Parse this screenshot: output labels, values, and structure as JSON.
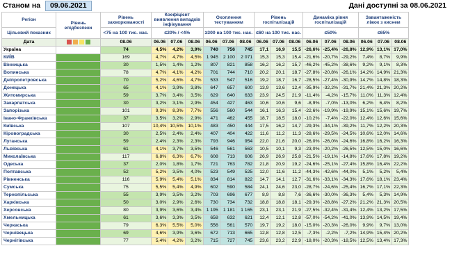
{
  "header": {
    "as_of_label": "Станом на",
    "as_of_date": "09.06.2021",
    "data_note": "Дані доступні за 08.06.2021"
  },
  "columns": {
    "region": "Регіон",
    "indicator": "Цільовий показник",
    "date_row": "Дата",
    "epi_level": "Рівень епідбезпеки",
    "morbidity": "Рівень захворюваності",
    "morbidity_target": "<75 на 100 тис. нас.",
    "detection": "Коефіцієнт виявлення випадків інфікування",
    "detection_target": "≤20% / <4%",
    "testing": "Охоплення тестуванням",
    "testing_target": "≥300 на 100 тис. нас.",
    "hosp": "Рівень госпіталізацій",
    "hosp_target": "≤60 на 100 тис. нас.",
    "dyn": "Динаміка рівня госпіталізацій",
    "dyn_target": "≤50%",
    "beds": "Завантаженість ліжок з киснем",
    "beds_target": "≤65%"
  },
  "dates": {
    "morbidity": "08.06",
    "triple": [
      "06.06",
      "07.06",
      "08.06"
    ]
  },
  "chart_data": {
    "type": "table",
    "rows": [
      {
        "region": "Україна",
        "morb": "74",
        "det": [
          "4,5%",
          "4,2%",
          "3,9%"
        ],
        "test": [
          "740",
          "756",
          "745"
        ],
        "hosp": [
          "17,1",
          "16,9",
          "15,5"
        ],
        "dyn": [
          "-26,6%",
          "-25,4%",
          "-26,8%"
        ],
        "beds": [
          "12,9%",
          "13,1%",
          "17,0%"
        ]
      },
      {
        "region": "КИЇВ",
        "morb": "169",
        "det": [
          "4,7%",
          "4,7%",
          "4,5%"
        ],
        "test": [
          "1 945",
          "2 100",
          "2 071"
        ],
        "hosp": [
          "15,3",
          "15,3",
          "15,4"
        ],
        "dyn": [
          "-21,6%",
          "-20,7%",
          "-29,2%"
        ],
        "beds": [
          "7,4%",
          "8,7%",
          "9,9%"
        ]
      },
      {
        "region": "Вінницька",
        "morb": "30",
        "det": [
          "1,5%",
          "1,4%",
          "1,2%"
        ],
        "test": [
          "807",
          "821",
          "858"
        ],
        "hosp": [
          "16,2",
          "16,2",
          "15,7"
        ],
        "dyn": [
          "-46,2%",
          "-45,2%",
          "-38,6%"
        ],
        "beds": [
          "9,2%",
          "9,1%",
          "8,3%"
        ]
      },
      {
        "region": "Волинська",
        "morb": "78",
        "det": [
          "4,7%",
          "4,1%",
          "4,2%"
        ],
        "test": [
          "701",
          "744",
          "710"
        ],
        "hosp": [
          "20,2",
          "20,1",
          "18,7"
        ],
        "dyn": [
          "-27,8%",
          "-20,8%",
          "-26,1%"
        ],
        "beds": [
          "14,2%",
          "14,9%",
          "21,3%"
        ]
      },
      {
        "region": "Дніпропетровська",
        "morb": "70",
        "det": [
          "5,2%",
          "4,6%",
          "4,7%"
        ],
        "test": [
          "533",
          "547",
          "516"
        ],
        "hosp": [
          "19,2",
          "18,7",
          "16,7"
        ],
        "dyn": [
          "-28,5%",
          "-27,4%",
          "-30,9%"
        ],
        "beds": [
          "14,7%",
          "14,8%",
          "18,3%"
        ]
      },
      {
        "region": "Донецька",
        "morb": "65",
        "det": [
          "4,1%",
          "3,9%",
          "3,8%"
        ],
        "test": [
          "647",
          "657",
          "600"
        ],
        "hosp": [
          "13,9",
          "13,6",
          "12,4"
        ],
        "dyn": [
          "-35,9%",
          "-32,2%",
          "-31,7%"
        ],
        "beds": [
          "21,4%",
          "21,3%",
          "20,2%"
        ]
      },
      {
        "region": "Житомирська",
        "morb": "59",
        "det": [
          "3,7%",
          "3,4%",
          "3,5%"
        ],
        "test": [
          "629",
          "640",
          "633"
        ],
        "hosp": [
          "23,9",
          "24,5",
          "21,9"
        ],
        "dyn": [
          "-11,4%",
          "-4,2%",
          "-15,7%"
        ],
        "beds": [
          "11,0%",
          "11,3%",
          "12,4%"
        ]
      },
      {
        "region": "Закарпатська",
        "morb": "30",
        "det": [
          "3,2%",
          "3,1%",
          "2,9%"
        ],
        "test": [
          "454",
          "427",
          "463"
        ],
        "hosp": [
          "10,6",
          "10,6",
          "9,6"
        ],
        "dyn": [
          "-8,9%",
          "-7,0%",
          "-13,0%"
        ],
        "beds": [
          "6,2%",
          "6,4%",
          "8,2%"
        ]
      },
      {
        "region": "Запорізька",
        "morb": "101",
        "det": [
          "9,3%",
          "8,3%",
          "7,7%"
        ],
        "test": [
          "556",
          "560",
          "544"
        ],
        "hosp": [
          "16,1",
          "16,3",
          "15,4"
        ],
        "dyn": [
          "-22,6%",
          "-19,9%",
          "-19,9%"
        ],
        "beds": [
          "15,1%",
          "15,6%",
          "19,7%"
        ]
      },
      {
        "region": "Івано-Франківська",
        "morb": "37",
        "det": [
          "3,5%",
          "3,2%",
          "2,9%"
        ],
        "test": [
          "471",
          "462",
          "455"
        ],
        "hosp": [
          "18,7",
          "18,5",
          "18,0"
        ],
        "dyn": [
          "-10,2%",
          "-7,4%",
          "-22,0%"
        ],
        "beds": [
          "12,4%",
          "12,6%",
          "15,6%"
        ]
      },
      {
        "region": "Київська",
        "morb": "107",
        "det": [
          "10,4%",
          "10,5%",
          "10,1%"
        ],
        "test": [
          "483",
          "450",
          "444"
        ],
        "hosp": [
          "17,5",
          "16,2",
          "14,7"
        ],
        "dyn": [
          "-29,3%",
          "-34,1%",
          "-39,2%"
        ],
        "beds": [
          "11,7%",
          "12,2%",
          "20,3%"
        ]
      },
      {
        "region": "Кіровоградська",
        "morb": "30",
        "det": [
          "2,5%",
          "2,4%",
          "2,4%"
        ],
        "test": [
          "407",
          "404",
          "422"
        ],
        "hosp": [
          "11,6",
          "11,2",
          "11,3"
        ],
        "dyn": [
          "-28,6%",
          "-29,5%",
          "-24,5%"
        ],
        "beds": [
          "10,6%",
          "12,0%",
          "14,6%"
        ]
      },
      {
        "region": "Луганська",
        "morb": "59",
        "det": [
          "2,4%",
          "2,3%",
          "2,3%"
        ],
        "test": [
          "793",
          "946",
          "954"
        ],
        "hosp": [
          "22,0",
          "21,6",
          "20,0"
        ],
        "dyn": [
          "-26,0%",
          "-26,0%",
          "-24,6%"
        ],
        "beds": [
          "16,8%",
          "16,2%",
          "16,3%"
        ]
      },
      {
        "region": "Львівська",
        "morb": "61",
        "det": [
          "4,1%",
          "3,7%",
          "3,5%"
        ],
        "test": [
          "546",
          "561",
          "563"
        ],
        "hosp": [
          "10,5",
          "10,1",
          "9,3"
        ],
        "dyn": [
          "-23,0%",
          "-20,2%",
          "-26,5%"
        ],
        "beds": [
          "12,5%",
          "15,0%",
          "16,6%"
        ]
      },
      {
        "region": "Миколаївська",
        "morb": "117",
        "det": [
          "6,8%",
          "6,3%",
          "6,7%"
        ],
        "test": [
          "608",
          "713",
          "606"
        ],
        "hosp": [
          "26,9",
          "26,9",
          "25,8"
        ],
        "dyn": [
          "-21,5%",
          "-19,1%",
          "-14,8%"
        ],
        "beds": [
          "17,6%",
          "17,8%",
          "19,2%"
        ]
      },
      {
        "region": "Одеська",
        "morb": "37",
        "det": [
          "2,0%",
          "1,8%",
          "1,7%"
        ],
        "test": [
          "721",
          "763",
          "782"
        ],
        "hosp": [
          "21,8",
          "20,9",
          "19,2"
        ],
        "dyn": [
          "-24,6%",
          "-25,1%",
          "-27,4%"
        ],
        "beds": [
          "15,8%",
          "16,4%",
          "22,2%"
        ]
      },
      {
        "region": "Полтавська",
        "morb": "52",
        "det": [
          "5,2%",
          "3,5%",
          "4,0%"
        ],
        "test": [
          "523",
          "549",
          "525"
        ],
        "hosp": [
          "12,0",
          "11,6",
          "11,2"
        ],
        "dyn": [
          "-44,3%",
          "-42,6%",
          "-44,0%"
        ],
        "beds": [
          "5,1%",
          "5,2%",
          "5,4%"
        ]
      },
      {
        "region": "Рівненська",
        "morb": "116",
        "det": [
          "5,9%",
          "5,4%",
          "5,1%"
        ],
        "test": [
          "834",
          "814",
          "822"
        ],
        "hosp": [
          "14,7",
          "14,1",
          "12,7"
        ],
        "dyn": [
          "-31,6%",
          "-33,1%",
          "-34,3%"
        ],
        "beds": [
          "17,6%",
          "18,1%",
          "23,4%"
        ]
      },
      {
        "region": "Сумська",
        "morb": "75",
        "det": [
          "5,5%",
          "5,4%",
          "4,9%"
        ],
        "test": [
          "602",
          "590",
          "584"
        ],
        "hosp": [
          "24,1",
          "24,6",
          "23,0"
        ],
        "dyn": [
          "-28,7%",
          "-24,6%",
          "-25,4%"
        ],
        "beds": [
          "16,7%",
          "17,1%",
          "22,3%"
        ]
      },
      {
        "region": "Тернопільська",
        "morb": "55",
        "det": [
          "3,9%",
          "3,5%",
          "3,2%"
        ],
        "test": [
          "703",
          "696",
          "677"
        ],
        "hosp": [
          "8,9",
          "8,8",
          "7,6"
        ],
        "dyn": [
          "-36,6%",
          "-30,0%",
          "-36,3%"
        ],
        "beds": [
          "5,4%",
          "5,3%",
          "14,9%"
        ]
      },
      {
        "region": "Харківська",
        "morb": "50",
        "det": [
          "3,0%",
          "2,9%",
          "2,6%"
        ],
        "test": [
          "730",
          "734",
          "732"
        ],
        "hosp": [
          "18,8",
          "18,8",
          "18,1"
        ],
        "dyn": [
          "-29,3%",
          "-28,8%",
          "-27,2%"
        ],
        "beds": [
          "21,2%",
          "21,3%",
          "20,5%"
        ]
      },
      {
        "region": "Херсонська",
        "morb": "80",
        "det": [
          "3,9%",
          "3,6%",
          "3,4%"
        ],
        "test": [
          "1 195",
          "1 181",
          "1 165"
        ],
        "hosp": [
          "23,1",
          "23,1",
          "21,9"
        ],
        "dyn": [
          "-27,5%",
          "-32,4%",
          "-31,4%"
        ],
        "beds": [
          "12,4%",
          "13,2%",
          "17,5%"
        ]
      },
      {
        "region": "Хмельницька",
        "morb": "61",
        "det": [
          "3,6%",
          "3,3%",
          "3,5%"
        ],
        "test": [
          "658",
          "632",
          "621"
        ],
        "hosp": [
          "12,4",
          "12,1",
          "12,8"
        ],
        "dyn": [
          "-57,0%",
          "-54,2%",
          "-41,0%"
        ],
        "beds": [
          "13,9%",
          "14,5%",
          "19,4%"
        ]
      },
      {
        "region": "Черкаська",
        "morb": "79",
        "det": [
          "6,3%",
          "5,5%",
          "5,0%"
        ],
        "test": [
          "556",
          "561",
          "570"
        ],
        "hosp": [
          "19,7",
          "19,2",
          "18,0"
        ],
        "dyn": [
          "-15,0%",
          "-20,3%",
          "-26,0%"
        ],
        "beds": [
          "9,9%",
          "9,7%",
          "13,0%"
        ]
      },
      {
        "region": "Чернівецька",
        "morb": "69",
        "det": [
          "4,6%",
          "3,9%",
          "3,6%"
        ],
        "test": [
          "672",
          "713",
          "665"
        ],
        "hosp": [
          "12,8",
          "12,8",
          "12,5"
        ],
        "dyn": [
          "-7,3%",
          "-2,2%",
          "-7,2%"
        ],
        "beds": [
          "14,9%",
          "15,4%",
          "20,2%"
        ]
      },
      {
        "region": "Чернігівська",
        "morb": "77",
        "det": [
          "5,4%",
          "4,2%",
          "3,2%"
        ],
        "test": [
          "715",
          "727",
          "745"
        ],
        "hosp": [
          "23,6",
          "23,2",
          "22,9"
        ],
        "dyn": [
          "-18,0%",
          "-20,3%",
          "-18,5%"
        ],
        "beds": [
          "12,5%",
          "13,4%",
          "17,3%"
        ]
      }
    ]
  },
  "colors": {
    "epi_green": "#6ab04c",
    "good_light": "#d9efc9",
    "good_mid": "#c4e5ae",
    "warn": "#fff2b3",
    "bad": "#f6c89c",
    "testing": "#bfe3e0",
    "header_blue": "#1f3f7a"
  }
}
